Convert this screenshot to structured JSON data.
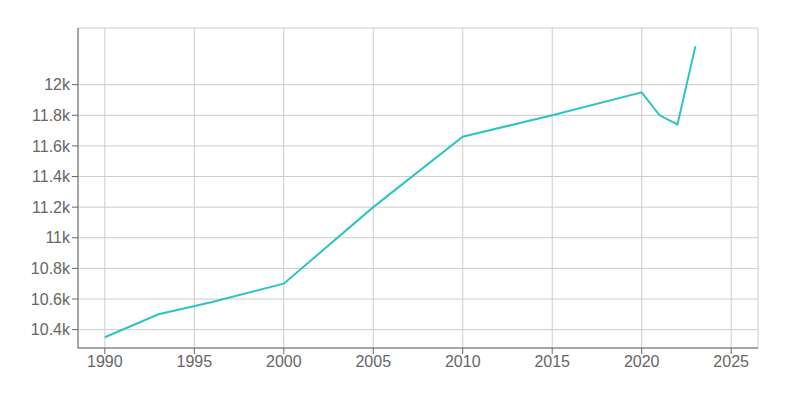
{
  "chart_data": {
    "type": "line",
    "x": [
      1990,
      1993,
      1996,
      2000,
      2005,
      2010,
      2015,
      2020,
      2021,
      2022,
      2023
    ],
    "values": [
      10350,
      10500,
      10580,
      10700,
      11200,
      11660,
      11800,
      11950,
      11800,
      11740,
      12250
    ],
    "color": "#2ec4c4",
    "xlim": [
      1988.5,
      2026.5
    ],
    "ylim": [
      10280,
      12370
    ],
    "xticks": [
      1990,
      1995,
      2000,
      2005,
      2010,
      2015,
      2020,
      2025
    ],
    "yticks": [
      {
        "value": 10400,
        "label": "10.4k"
      },
      {
        "value": 10600,
        "label": "10.6k"
      },
      {
        "value": 10800,
        "label": "10.8k"
      },
      {
        "value": 11000,
        "label": "11k"
      },
      {
        "value": 11200,
        "label": "11.2k"
      },
      {
        "value": 11400,
        "label": "11.4k"
      },
      {
        "value": 11600,
        "label": "11.6k"
      },
      {
        "value": 11800,
        "label": "11.8k"
      },
      {
        "value": 12000,
        "label": "12k"
      }
    ],
    "grid": true
  }
}
